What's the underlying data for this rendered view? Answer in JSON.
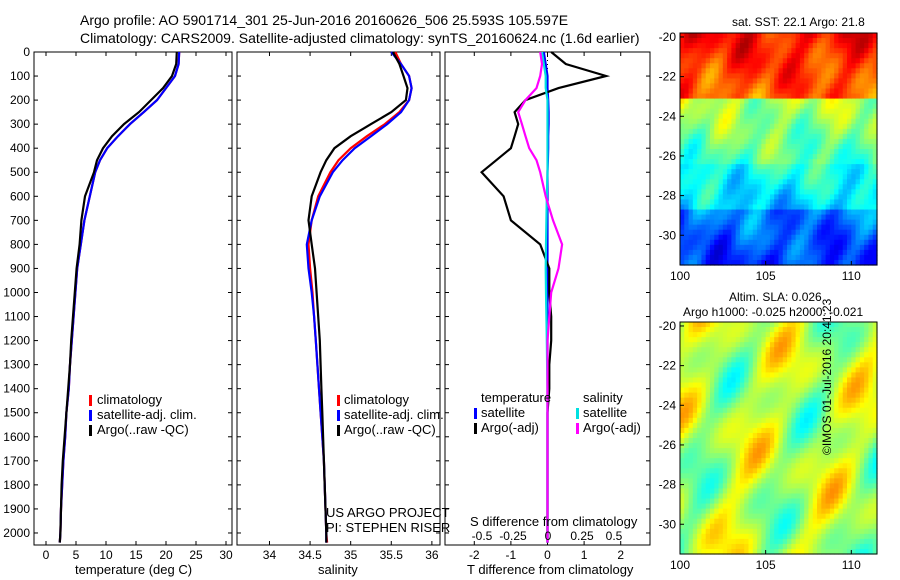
{
  "header": {
    "line1": "Argo profile: AO 5901714_301 25-Jun-2016 20160626_506 25.593S 105.597E",
    "line2": "Climatology: CARS2009. Satellite-adjusted climatology: synTS_20160624.nc (1.6d earlier)"
  },
  "colors": {
    "climatology": "#ff0000",
    "satellite": "#0000ff",
    "argo": "#000000",
    "sal_satellite": "#00e0e0",
    "sal_argo": "#ff00ff"
  },
  "panels": {
    "temperature": {
      "xlabel": "temperature (deg C)",
      "legend": [
        "climatology",
        "satellite-adj. clim.",
        "Argo(..raw -QC)"
      ]
    },
    "salinity": {
      "xlabel": "salinity",
      "legend": [
        "climatology",
        "satellite-adj. clim.",
        "Argo(..raw -QC)"
      ],
      "credit1": "US ARGO PROJECT",
      "credit2": "PI: STEPHEN RISER"
    },
    "difference": {
      "top_label": "S difference from climatology",
      "xlabel": "T difference from climatology",
      "legend_head_t": "temperature",
      "legend_head_s": "salinity",
      "legend": [
        "satellite",
        "Argo(-adj)",
        "satellite",
        "Argo(-adj)"
      ]
    },
    "sst_map": {
      "title": "sat. SST: 22.1  Argo: 21.8"
    },
    "sla_map": {
      "title1": "Altim. SLA: 0.026",
      "title2": "Argo h1000: -0.025 h2000: -0.021"
    },
    "stamp": "©IMOS 01-Jul-2016 20:41:23"
  },
  "chart_data": [
    {
      "type": "line",
      "title": "",
      "xlabel": "temperature (deg C)",
      "ylabel": "",
      "xlim": [
        -2,
        31
      ],
      "ylim": [
        2050,
        0
      ],
      "xticks": [
        0,
        5,
        10,
        15,
        20,
        25,
        30
      ],
      "yticks": [
        0,
        100,
        200,
        300,
        400,
        500,
        600,
        700,
        800,
        900,
        1000,
        1100,
        1200,
        1300,
        1400,
        1500,
        1600,
        1700,
        1800,
        1900,
        2000
      ],
      "series": [
        {
          "name": "climatology",
          "color": "#ff0000",
          "x": [
            22.2,
            22.1,
            21.5,
            20,
            18.5,
            16.3,
            14,
            12,
            10.2,
            9,
            8.2,
            7.3,
            6.4,
            5.8,
            5.2,
            4.9,
            4.6,
            4.3,
            4,
            3.8,
            3.4,
            3.2,
            2.9,
            2.7,
            2.5,
            2.4,
            2.3
          ],
          "y": [
            0,
            50,
            100,
            150,
            200,
            250,
            300,
            350,
            400,
            450,
            500,
            600,
            700,
            800,
            900,
            1000,
            1100,
            1200,
            1300,
            1400,
            1500,
            1600,
            1700,
            1800,
            1900,
            2000,
            2040
          ]
        },
        {
          "name": "satellite-adj. clim.",
          "color": "#0000ff",
          "x": [
            22.2,
            22.1,
            21.5,
            20,
            18.5,
            16.3,
            14,
            12,
            10.2,
            9,
            8.2,
            7.3,
            6.4,
            5.8,
            5.2,
            4.9,
            4.6,
            4.3,
            4,
            3.8,
            3.4,
            3.2,
            2.9,
            2.7,
            2.5,
            2.4,
            2.3
          ],
          "y": [
            0,
            50,
            100,
            150,
            200,
            250,
            300,
            350,
            400,
            450,
            500,
            600,
            700,
            800,
            900,
            1000,
            1100,
            1200,
            1300,
            1400,
            1500,
            1600,
            1700,
            1800,
            1900,
            2000,
            2040
          ]
        },
        {
          "name": "Argo(..raw -QC)",
          "color": "#000000",
          "x": [
            21.8,
            21.7,
            21,
            19.5,
            17.5,
            15.5,
            13,
            11,
            9.5,
            8.5,
            8,
            6.5,
            5.9,
            5.6,
            5.1,
            4.8,
            4.5,
            4.2,
            4,
            3.7,
            3.4,
            3.1,
            2.8,
            2.6,
            2.5,
            2.4,
            2.3
          ],
          "y": [
            0,
            50,
            100,
            150,
            200,
            250,
            300,
            350,
            400,
            450,
            500,
            600,
            700,
            800,
            900,
            1000,
            1100,
            1200,
            1300,
            1400,
            1500,
            1600,
            1700,
            1800,
            1900,
            2000,
            2040
          ]
        }
      ]
    },
    {
      "type": "line",
      "title": "",
      "xlabel": "salinity",
      "ylabel": "",
      "xlim": [
        33.6,
        36.1
      ],
      "ylim": [
        2050,
        0
      ],
      "xticks": [
        34,
        34.5,
        35,
        35.5,
        36
      ],
      "series": [
        {
          "name": "climatology",
          "color": "#ff0000",
          "x": [
            35.55,
            35.62,
            35.72,
            35.75,
            35.72,
            35.6,
            35.42,
            35.2,
            35.0,
            34.85,
            34.75,
            34.6,
            34.52,
            34.48,
            34.5,
            34.53,
            34.55,
            34.57,
            34.59,
            34.61,
            34.63,
            34.65,
            34.67,
            34.68,
            34.69,
            34.7,
            34.71
          ],
          "y": [
            0,
            50,
            100,
            150,
            200,
            250,
            300,
            350,
            400,
            450,
            500,
            600,
            700,
            800,
            900,
            1000,
            1100,
            1200,
            1300,
            1400,
            1500,
            1600,
            1700,
            1800,
            1900,
            2000,
            2040
          ]
        },
        {
          "name": "satellite-adj. clim.",
          "color": "#0000ff",
          "x": [
            35.5,
            35.62,
            35.72,
            35.75,
            35.72,
            35.62,
            35.45,
            35.25,
            35.05,
            34.9,
            34.78,
            34.62,
            34.52,
            34.46,
            34.48,
            34.52,
            34.55,
            34.57,
            34.59,
            34.61,
            34.63,
            34.65,
            34.67,
            34.68,
            34.69,
            34.7,
            34.7
          ],
          "y": [
            0,
            50,
            100,
            150,
            200,
            250,
            300,
            350,
            400,
            450,
            500,
            600,
            700,
            800,
            900,
            1000,
            1100,
            1200,
            1300,
            1400,
            1500,
            1600,
            1700,
            1800,
            1900,
            2000,
            2040
          ]
        },
        {
          "name": "Argo(..raw -QC)",
          "color": "#000000",
          "x": [
            35.52,
            35.6,
            35.65,
            35.7,
            35.68,
            35.5,
            35.25,
            35.0,
            34.8,
            34.7,
            34.63,
            34.52,
            34.48,
            34.52,
            34.56,
            34.58,
            34.6,
            34.62,
            34.63,
            34.64,
            34.65,
            34.66,
            34.67,
            34.68,
            34.69,
            34.7,
            34.7
          ],
          "y": [
            0,
            50,
            100,
            150,
            200,
            250,
            300,
            350,
            400,
            450,
            500,
            600,
            700,
            800,
            900,
            1000,
            1100,
            1200,
            1300,
            1400,
            1500,
            1600,
            1700,
            1800,
            1900,
            2000,
            2040
          ]
        }
      ]
    },
    {
      "type": "line",
      "title": "",
      "xlabel": "T difference from climatology",
      "ylabel": "",
      "xlim": [
        -2.8,
        2.8
      ],
      "ylim": [
        2050,
        0
      ],
      "xticks": [
        -2,
        -1,
        0,
        1,
        2
      ],
      "top_xticks": [
        "-0.5",
        "-0.25",
        "0",
        "0.25",
        "0.5"
      ],
      "series": [
        {
          "name": "satellite",
          "color": "#0000ff",
          "x": [
            -0.1,
            -0.05,
            0,
            0,
            0.02,
            0.03,
            0.03,
            0.02,
            0.02,
            0.01,
            0,
            0,
            0,
            0,
            0,
            0,
            0,
            0,
            0,
            0,
            0,
            0,
            0,
            0,
            0,
            0,
            0
          ],
          "y": [
            0,
            50,
            100,
            150,
            200,
            250,
            300,
            350,
            400,
            450,
            500,
            600,
            700,
            800,
            900,
            1000,
            1100,
            1200,
            1300,
            1400,
            1500,
            1600,
            1700,
            1800,
            1900,
            2000,
            2040
          ]
        },
        {
          "name": "Argo(-adj)",
          "color": "#000000",
          "x": [
            0.1,
            0.5,
            1.6,
            0.3,
            -0.6,
            -0.9,
            -0.8,
            -0.9,
            -1.0,
            -1.4,
            -1.8,
            -1.2,
            -1.0,
            -0.2,
            0.05,
            0.05,
            0.1,
            0.1,
            0.05,
            0.05,
            0,
            0,
            0,
            0,
            0,
            0,
            0
          ],
          "y": [
            0,
            50,
            100,
            150,
            200,
            250,
            300,
            350,
            400,
            450,
            500,
            600,
            700,
            800,
            900,
            1000,
            1100,
            1200,
            1300,
            1400,
            1500,
            1600,
            1700,
            1800,
            1900,
            2000,
            2040
          ]
        },
        {
          "name": "satellite",
          "color": "#00e0e0",
          "x": [
            -0.15,
            -0.1,
            -0.05,
            -0.05,
            0,
            0,
            0,
            0,
            0,
            0,
            0,
            -0.02,
            -0.03,
            -0.04,
            -0.05,
            -0.04,
            -0.03,
            -0.02,
            -0.01,
            0,
            0,
            0,
            0,
            0,
            0,
            0,
            0
          ],
          "y": [
            0,
            50,
            100,
            150,
            200,
            250,
            300,
            350,
            400,
            450,
            500,
            600,
            700,
            800,
            900,
            1000,
            1100,
            1200,
            1300,
            1400,
            1500,
            1600,
            1700,
            1800,
            1900,
            2000,
            2040
          ]
        },
        {
          "name": "Argo(-adj)",
          "color": "#ff00ff",
          "x": [
            -0.2,
            -0.15,
            -0.2,
            -0.3,
            -0.6,
            -0.8,
            -0.7,
            -0.6,
            -0.5,
            -0.3,
            -0.2,
            -0.05,
            0.15,
            0.4,
            0.3,
            0.1,
            0.05,
            0,
            0,
            0,
            0,
            0,
            0,
            0,
            0,
            0,
            0
          ],
          "y": [
            0,
            50,
            100,
            150,
            200,
            250,
            300,
            350,
            400,
            450,
            500,
            600,
            700,
            800,
            900,
            1000,
            1100,
            1200,
            1300,
            1400,
            1500,
            1600,
            1700,
            1800,
            1900,
            2000,
            2040
          ]
        }
      ]
    },
    {
      "type": "heatmap",
      "title": "sat. SST: 22.1  Argo: 21.8",
      "xlim": [
        100,
        111.5
      ],
      "ylim": [
        -31.5,
        -19.8
      ],
      "xticks": [
        100,
        105,
        110
      ],
      "yticks": [
        -20,
        -22,
        -24,
        -26,
        -28,
        -30
      ]
    },
    {
      "type": "heatmap",
      "title": "Altim. SLA: 0.026",
      "xlim": [
        100,
        111.5
      ],
      "ylim": [
        -31.5,
        -19.8
      ],
      "xticks": [
        100,
        105,
        110
      ],
      "yticks": [
        -20,
        -22,
        -24,
        -26,
        -28,
        -30
      ]
    }
  ]
}
